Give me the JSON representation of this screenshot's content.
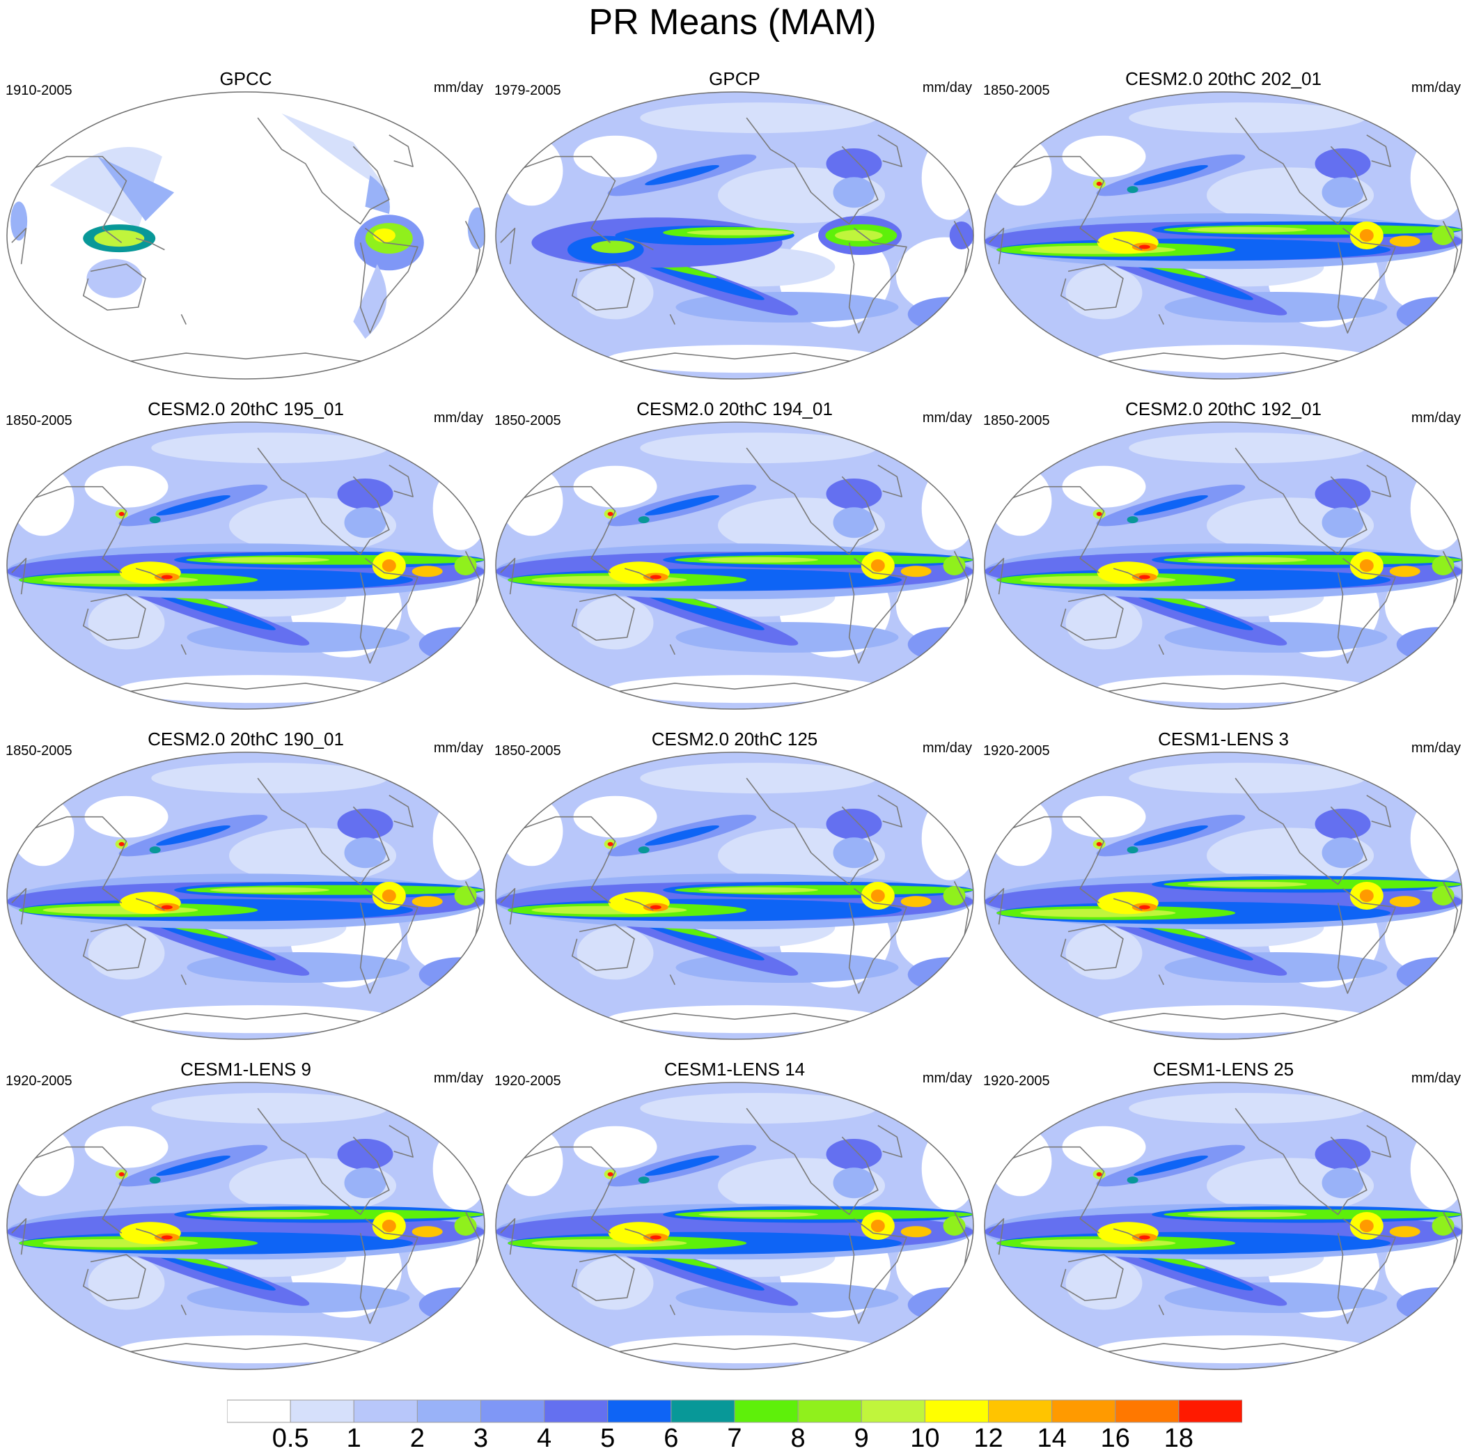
{
  "title": "PR Means (MAM)",
  "panels": [
    {
      "title": "GPCC",
      "period": "1910-2005",
      "units": "mm/day",
      "style": "obs-land"
    },
    {
      "title": "GPCP",
      "period": "1979-2005",
      "units": "mm/day",
      "style": "obs"
    },
    {
      "title": "CESM2.0 20thC 202_01",
      "period": "1850-2005",
      "units": "mm/day",
      "style": "cesm2"
    },
    {
      "title": "CESM2.0 20thC 195_01",
      "period": "1850-2005",
      "units": "mm/day",
      "style": "cesm2"
    },
    {
      "title": "CESM2.0 20thC 194_01",
      "period": "1850-2005",
      "units": "mm/day",
      "style": "cesm2"
    },
    {
      "title": "CESM2.0 20thC 192_01",
      "period": "1850-2005",
      "units": "mm/day",
      "style": "cesm2"
    },
    {
      "title": "CESM2.0 20thC 190_01",
      "period": "1850-2005",
      "units": "mm/day",
      "style": "cesm2"
    },
    {
      "title": "CESM2.0 20thC 125",
      "period": "1850-2005",
      "units": "mm/day",
      "style": "cesm2"
    },
    {
      "title": "CESM1-LENS 3",
      "period": "1920-2005",
      "units": "mm/day",
      "style": "lens"
    },
    {
      "title": "CESM1-LENS 9",
      "period": "1920-2005",
      "units": "mm/day",
      "style": "lens"
    },
    {
      "title": "CESM1-LENS 14",
      "period": "1920-2005",
      "units": "mm/day",
      "style": "lens"
    },
    {
      "title": "CESM1-LENS 25",
      "period": "1920-2005",
      "units": "mm/day",
      "style": "lens"
    }
  ],
  "colorbar": {
    "levels": [
      "0.5",
      "1",
      "2",
      "3",
      "4",
      "5",
      "6",
      "7",
      "8",
      "9",
      "10",
      "12",
      "14",
      "16",
      "18"
    ],
    "colors": [
      "#ffffff",
      "#d6e0fb",
      "#b8c7fa",
      "#99b2f8",
      "#7f97f6",
      "#6470f0",
      "#0e64f5",
      "#089898",
      "#5ef00a",
      "#90f01c",
      "#c0f53c",
      "#ffff00",
      "#ffc400",
      "#ff9a00",
      "#ff7800",
      "#ff1a00"
    ]
  },
  "colors": {
    "land_outline": "#7a7a7a",
    "map_border": "#6e6e6e"
  }
}
